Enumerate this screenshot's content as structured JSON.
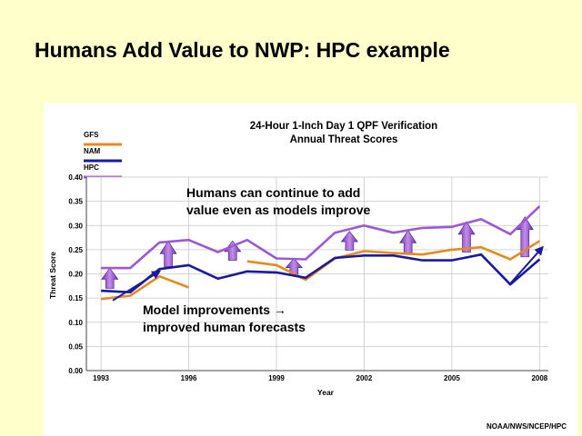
{
  "slide": {
    "title": "Humans Add Value to NWP:  HPC example",
    "credit": "NOAA/NWS/NCEP/HPC"
  },
  "chart_data": {
    "type": "line",
    "title": "24-Hour 1-Inch Day 1 QPF Verification",
    "subtitle": "Annual Threat Scores",
    "xlabel": "Year",
    "ylabel": "Threat Score",
    "xlim": [
      1992.5,
      2008.3
    ],
    "ylim": [
      0,
      0.4
    ],
    "x_ticks": [
      1993,
      1996,
      1999,
      2002,
      2005,
      2008
    ],
    "y_ticks": [
      0.0,
      0.05,
      0.1,
      0.15,
      0.2,
      0.25,
      0.3,
      0.35,
      0.4
    ],
    "grid": true,
    "legend": "top-left",
    "series": [
      {
        "name": "GFS",
        "color": "#e58a1f",
        "points": [
          [
            1993,
            0.148
          ],
          [
            1994,
            0.155
          ],
          [
            1995,
            0.195
          ],
          [
            1996,
            0.172
          ],
          [
            null,
            null
          ],
          [
            1998,
            0.226
          ],
          [
            1999,
            0.218
          ],
          [
            2000,
            0.188
          ],
          [
            2001,
            0.232
          ],
          [
            2002,
            0.247
          ],
          [
            2003,
            0.243
          ],
          [
            2004,
            0.24
          ],
          [
            2005,
            0.25
          ],
          [
            2006,
            0.255
          ],
          [
            2007,
            0.23
          ],
          [
            2008,
            0.268
          ]
        ]
      },
      {
        "name": "NAM",
        "color": "#1a1aa0",
        "points": [
          [
            1993,
            0.165
          ],
          [
            1994,
            0.162
          ],
          [
            1995,
            0.21
          ],
          [
            1996,
            0.218
          ],
          [
            1997,
            0.19
          ],
          [
            1998,
            0.205
          ],
          [
            1999,
            0.203
          ],
          [
            2000,
            0.192
          ],
          [
            2001,
            0.233
          ],
          [
            2002,
            0.238
          ],
          [
            2003,
            0.238
          ],
          [
            2004,
            0.228
          ],
          [
            2005,
            0.228
          ],
          [
            2006,
            0.24
          ],
          [
            2007,
            0.178
          ],
          [
            2008,
            0.23
          ]
        ]
      },
      {
        "name": "HPC",
        "color": "#9b59d6",
        "points": [
          [
            1993,
            0.212
          ],
          [
            1994,
            0.212
          ],
          [
            1995,
            0.265
          ],
          [
            1996,
            0.27
          ],
          [
            1997,
            0.245
          ],
          [
            1998,
            0.27
          ],
          [
            1999,
            0.232
          ],
          [
            2000,
            0.23
          ],
          [
            2001,
            0.285
          ],
          [
            2002,
            0.3
          ],
          [
            2003,
            0.285
          ],
          [
            2004,
            0.295
          ],
          [
            2005,
            0.297
          ],
          [
            2006,
            0.313
          ],
          [
            2007,
            0.282
          ],
          [
            2008,
            0.34
          ]
        ]
      }
    ],
    "annotations": [
      {
        "id": "top",
        "lines": [
          "Humans can continue to add",
          "value even as models improve"
        ]
      },
      {
        "id": "bottom",
        "lines": [
          "Model improvements →",
          "improved human forecasts"
        ]
      }
    ],
    "value_added_arrows": [
      {
        "x": 1993.3,
        "from": 0.17,
        "to": 0.212
      },
      {
        "x": 1995.3,
        "from": 0.215,
        "to": 0.268
      },
      {
        "x": 1997.5,
        "from": 0.228,
        "to": 0.268
      },
      {
        "x": 1999.6,
        "from": 0.197,
        "to": 0.232
      },
      {
        "x": 2001.5,
        "from": 0.249,
        "to": 0.288
      },
      {
        "x": 2003.5,
        "from": 0.243,
        "to": 0.29
      },
      {
        "x": 2005.5,
        "from": 0.245,
        "to": 0.308
      },
      {
        "x": 2007.5,
        "from": 0.235,
        "to": 0.318
      }
    ],
    "improvement_arrows": [
      {
        "from": [
          1993.4,
          0.145
        ],
        "to": [
          1995,
          0.205
        ]
      },
      {
        "from": [
          2007,
          0.18
        ],
        "to": [
          2008.1,
          0.255
        ]
      }
    ]
  }
}
